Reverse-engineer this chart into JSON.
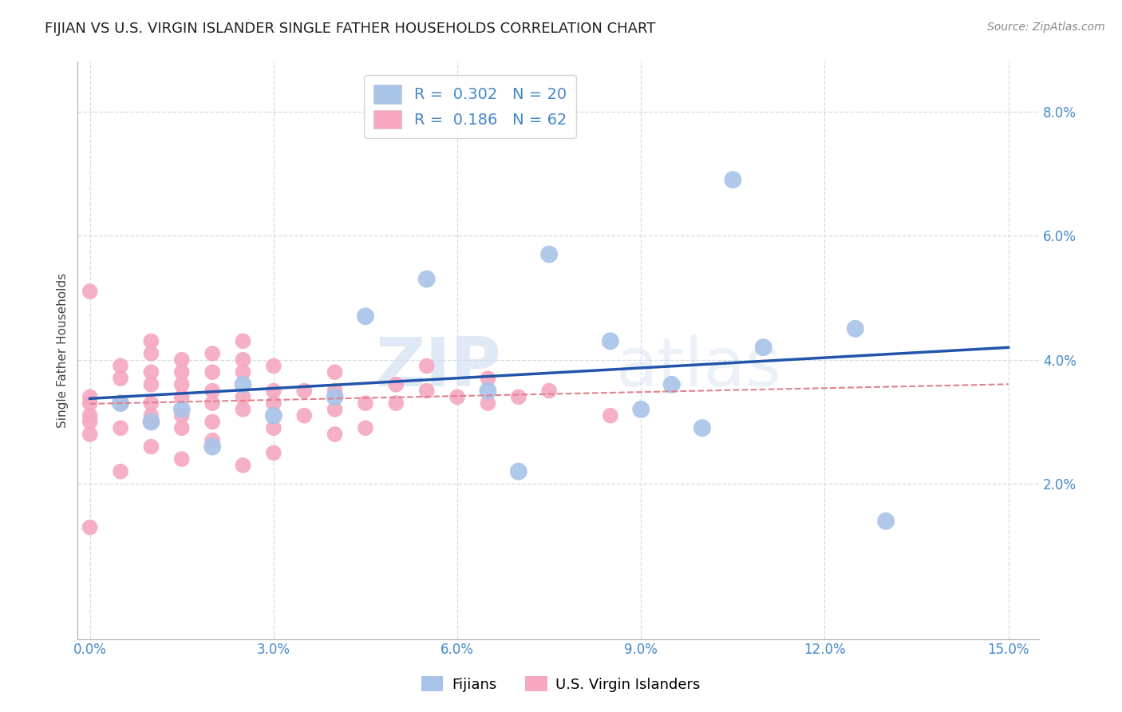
{
  "title": "FIJIAN VS U.S. VIRGIN ISLANDER SINGLE FATHER HOUSEHOLDS CORRELATION CHART",
  "source": "Source: ZipAtlas.com",
  "ylabel": "Single Father Households",
  "xlim": [
    -0.002,
    0.155
  ],
  "ylim": [
    -0.005,
    0.088
  ],
  "xtick_vals": [
    0.0,
    0.03,
    0.06,
    0.09,
    0.12,
    0.15
  ],
  "xtick_labels": [
    "0.0%",
    "3.0%",
    "6.0%",
    "9.0%",
    "12.0%",
    "15.0%"
  ],
  "ytick_vals": [
    0.02,
    0.04,
    0.06,
    0.08
  ],
  "ytick_labels": [
    "2.0%",
    "4.0%",
    "6.0%",
    "8.0%"
  ],
  "fijian_R": 0.302,
  "fijian_N": 20,
  "virgin_R": 0.186,
  "virgin_N": 62,
  "fijian_color": "#a8c4e8",
  "fijian_line_color": "#2255aa",
  "virgin_color": "#f5a8c0",
  "virgin_line_color": "#e08090",
  "fijian_scatter_x": [
    0.005,
    0.01,
    0.015,
    0.02,
    0.025,
    0.03,
    0.04,
    0.045,
    0.055,
    0.065,
    0.07,
    0.075,
    0.085,
    0.095,
    0.1,
    0.105,
    0.11,
    0.125,
    0.13,
    0.09
  ],
  "fijian_scatter_y": [
    0.033,
    0.03,
    0.032,
    0.026,
    0.036,
    0.031,
    0.034,
    0.047,
    0.053,
    0.035,
    0.022,
    0.057,
    0.043,
    0.036,
    0.029,
    0.069,
    0.042,
    0.045,
    0.014,
    0.032
  ],
  "virgin_scatter_x": [
    0.0,
    0.0,
    0.0,
    0.0,
    0.0,
    0.0,
    0.0,
    0.005,
    0.005,
    0.005,
    0.005,
    0.005,
    0.01,
    0.01,
    0.01,
    0.01,
    0.01,
    0.01,
    0.01,
    0.01,
    0.015,
    0.015,
    0.015,
    0.015,
    0.015,
    0.015,
    0.015,
    0.02,
    0.02,
    0.02,
    0.02,
    0.02,
    0.02,
    0.025,
    0.025,
    0.025,
    0.025,
    0.025,
    0.025,
    0.03,
    0.03,
    0.03,
    0.03,
    0.03,
    0.035,
    0.035,
    0.04,
    0.04,
    0.04,
    0.04,
    0.045,
    0.045,
    0.05,
    0.05,
    0.055,
    0.055,
    0.06,
    0.065,
    0.065,
    0.07,
    0.075,
    0.085
  ],
  "virgin_scatter_y": [
    0.051,
    0.034,
    0.033,
    0.031,
    0.03,
    0.028,
    0.013,
    0.039,
    0.037,
    0.033,
    0.029,
    0.022,
    0.043,
    0.041,
    0.038,
    0.036,
    0.033,
    0.031,
    0.03,
    0.026,
    0.04,
    0.038,
    0.036,
    0.034,
    0.031,
    0.029,
    0.024,
    0.041,
    0.038,
    0.035,
    0.033,
    0.03,
    0.027,
    0.043,
    0.04,
    0.038,
    0.034,
    0.032,
    0.023,
    0.039,
    0.035,
    0.033,
    0.029,
    0.025,
    0.035,
    0.031,
    0.038,
    0.035,
    0.032,
    0.028,
    0.033,
    0.029,
    0.036,
    0.033,
    0.039,
    0.035,
    0.034,
    0.037,
    0.033,
    0.034,
    0.035,
    0.031
  ],
  "watermark_zip": "ZIP",
  "watermark_atlas": "atlas",
  "background_color": "#ffffff",
  "grid_color": "#d4dce8",
  "title_fontsize": 13,
  "axis_label_fontsize": 11,
  "tick_fontsize": 12,
  "legend_fontsize": 14,
  "tick_color": "#4488cc",
  "legend_text_color": "#4488cc"
}
